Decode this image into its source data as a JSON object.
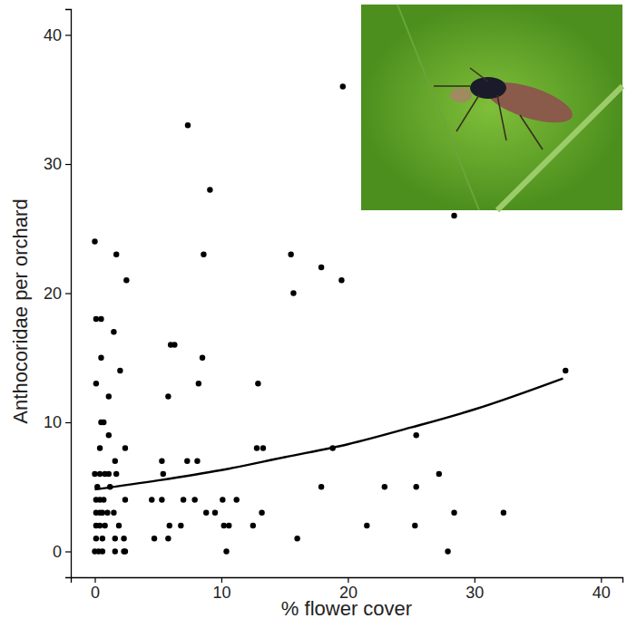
{
  "chart_data": {
    "type": "scatter",
    "x_label": "% flower cover",
    "y_label": "Anthocoridae per orchard",
    "xlim": [
      -1.9,
      41.7
    ],
    "ylim": [
      -2,
      42
    ],
    "xticks": [
      0,
      10,
      20,
      30,
      40
    ],
    "yticks": [
      0,
      10,
      20,
      30,
      40
    ],
    "grid": false,
    "series": [
      {
        "type": "scatter",
        "marker": "circle",
        "color": "#000000",
        "x": [
          19.6,
          7.35,
          9.1,
          28.4,
          0,
          1.7,
          8.6,
          15.5,
          2.5,
          19.5,
          17.9,
          15.7,
          0.1,
          0.5,
          1.5,
          6.0,
          6.3,
          0.5,
          8.5,
          2.0,
          37.2,
          0.1,
          8.2,
          12.9,
          1.1,
          5.8,
          0.5,
          0.7,
          1.1,
          25.4,
          0.4,
          2.4,
          12.8,
          13.3,
          18.8,
          1.6,
          5.3,
          7.3,
          8.1,
          0,
          0.4,
          0.8,
          1.1,
          1.7,
          5.4,
          27.2,
          0.2,
          1.2,
          17.9,
          22.9,
          25.4,
          0.1,
          0.4,
          0.7,
          2.4,
          4.5,
          5.3,
          7.0,
          7.9,
          10.1,
          11.2,
          0.1,
          0.4,
          0.6,
          1.0,
          1.5,
          8.8,
          9.5,
          13.2,
          28.4,
          32.3,
          0.1,
          0.4,
          0.8,
          1.9,
          5.9,
          6.8,
          10.2,
          10.6,
          12.5,
          21.5,
          25.3,
          0.1,
          0.6,
          1.6,
          2.3,
          4.7,
          5.8,
          16.0,
          0,
          0.3,
          0.6,
          1.6,
          2.3,
          2.4,
          10.4,
          27.9
        ],
        "values": [
          36,
          33,
          28,
          26,
          24,
          23,
          23,
          23,
          21,
          21,
          22,
          20,
          18,
          18,
          17,
          16,
          16,
          15,
          15,
          14,
          14,
          13,
          13,
          13,
          12,
          12,
          10,
          10,
          9,
          9,
          8,
          8,
          8,
          8,
          8,
          7,
          7,
          7,
          7,
          6,
          6,
          6,
          6,
          6,
          6,
          6,
          5,
          5,
          5,
          5,
          5,
          4,
          4,
          4,
          4,
          4,
          4,
          4,
          4,
          4,
          4,
          3,
          3,
          3,
          3,
          3,
          3,
          3,
          3,
          3,
          3,
          2,
          2,
          2,
          2,
          2,
          2,
          2,
          2,
          2,
          2,
          2,
          1,
          1,
          1,
          1,
          1,
          1,
          1,
          0,
          0,
          0,
          0,
          0,
          0,
          0,
          0
        ]
      },
      {
        "type": "line",
        "line_style": "solid",
        "color": "#000000",
        "x": [
          0,
          5,
          10,
          15,
          20,
          25,
          30,
          37
        ],
        "values": [
          4.8,
          5.5,
          6.3,
          7.3,
          8.3,
          9.6,
          11.0,
          13.4
        ]
      }
    ]
  }
}
